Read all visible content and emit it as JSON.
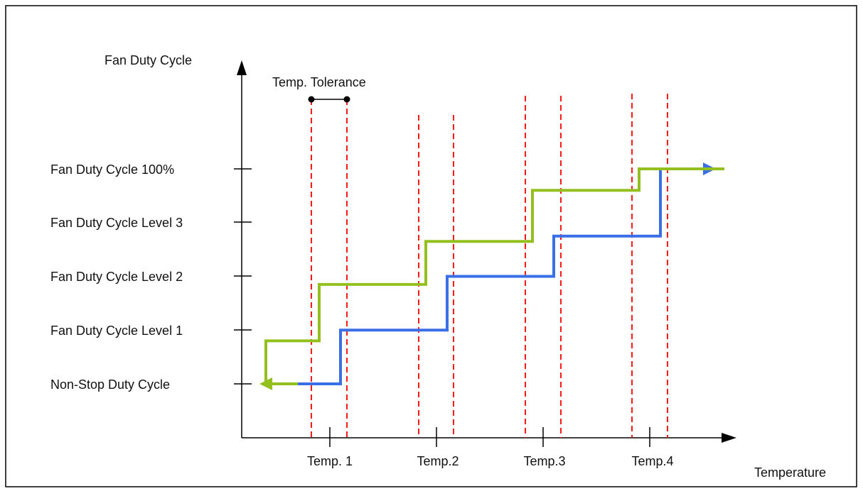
{
  "chart_data": {
    "type": "line",
    "ylabel": "Fan Duty Cycle",
    "xlabel": "Temperature",
    "y_levels": [
      "Non-Stop Duty Cycle",
      "Fan Duty Cycle Level 1",
      "Fan Duty Cycle Level 2",
      "Fan Duty Cycle Level 3",
      "Fan Duty Cycle 100%"
    ],
    "x_ticks": [
      "Temp. 1",
      "Temp.2",
      "Temp.3",
      "Temp.4"
    ],
    "tolerance_label": "Temp. Tolerance",
    "colors": {
      "rising": "#3b6fe8",
      "falling": "#93c01f",
      "threshold": "#ff1a1a",
      "axis": "#000000"
    },
    "series": [
      {
        "direction": "rising",
        "points": [
          [
            -0.3,
            0
          ],
          [
            0.1,
            0
          ],
          [
            0.1,
            1
          ],
          [
            1.1,
            1
          ],
          [
            1.1,
            2
          ],
          [
            2.1,
            2
          ],
          [
            2.1,
            2.75
          ],
          [
            3.1,
            2.75
          ],
          [
            3.1,
            4
          ],
          [
            3.7,
            4
          ]
        ]
      },
      {
        "direction": "falling",
        "points": [
          [
            3.7,
            4
          ],
          [
            2.9,
            4
          ],
          [
            2.9,
            3.6
          ],
          [
            1.9,
            3.6
          ],
          [
            1.9,
            2.65
          ],
          [
            0.9,
            2.65
          ],
          [
            0.9,
            1.85
          ],
          [
            -0.1,
            1.85
          ],
          [
            -0.1,
            0.8
          ],
          [
            -0.6,
            0.8
          ],
          [
            -0.6,
            0
          ],
          [
            -0.3,
            0
          ]
        ]
      }
    ]
  }
}
